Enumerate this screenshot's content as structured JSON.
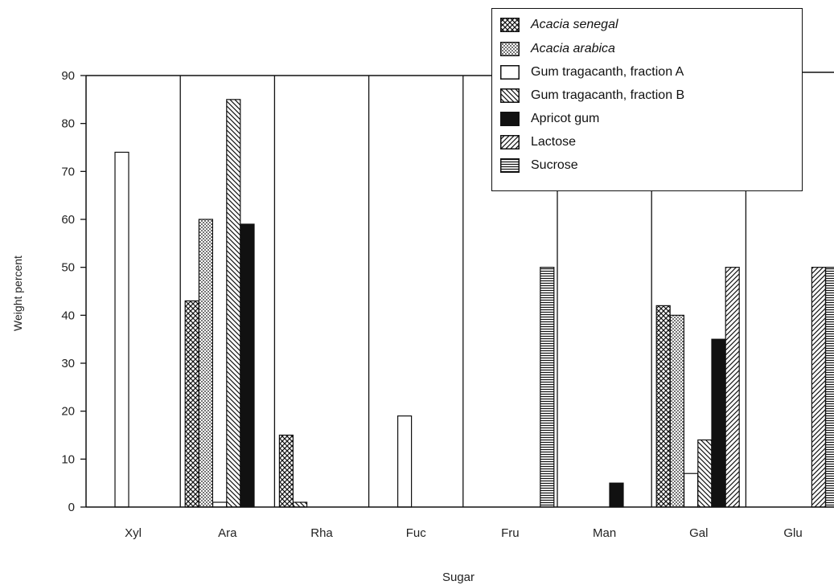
{
  "chart_data": {
    "type": "bar",
    "xlabel": "Sugar",
    "ylabel": "Weight percent",
    "ylim": [
      0,
      90
    ],
    "yticks": [
      0,
      10,
      20,
      30,
      40,
      50,
      60,
      70,
      80,
      90
    ],
    "categories": [
      "Xyl",
      "Ara",
      "Rha",
      "Fuc",
      "Fru",
      "Man",
      "Gal",
      "Glu"
    ],
    "grid": "vertical separators between categories",
    "legend_position": "top-right",
    "series": [
      {
        "name": "Acacia senegal",
        "pattern": "crosshatch",
        "italic": true,
        "values": [
          0,
          43,
          15,
          0,
          0,
          0,
          42,
          0
        ]
      },
      {
        "name": "Acacia arabica",
        "pattern": "dots",
        "italic": true,
        "values": [
          0,
          60,
          0,
          0,
          0,
          0,
          40,
          0
        ]
      },
      {
        "name": "Gum tragacanth, fraction A",
        "pattern": "white",
        "italic": false,
        "values": [
          74,
          1,
          0,
          19,
          0,
          0,
          7,
          0
        ]
      },
      {
        "name": "Gum tragacanth, fraction B",
        "pattern": "diag-back",
        "italic": false,
        "values": [
          0,
          85,
          1,
          0,
          0,
          0,
          14,
          0
        ]
      },
      {
        "name": "Apricot gum",
        "pattern": "solid",
        "italic": false,
        "values": [
          0,
          59,
          0,
          0,
          0,
          5,
          35,
          0
        ]
      },
      {
        "name": "Lactose",
        "pattern": "diag-fwd",
        "italic": false,
        "values": [
          0,
          0,
          0,
          0,
          0,
          0,
          50,
          50
        ]
      },
      {
        "name": "Sucrose",
        "pattern": "horiz",
        "italic": false,
        "values": [
          0,
          0,
          0,
          0,
          50,
          0,
          0,
          50
        ]
      }
    ],
    "colors": {
      "ink": "#111111",
      "background": "#ffffff"
    }
  }
}
